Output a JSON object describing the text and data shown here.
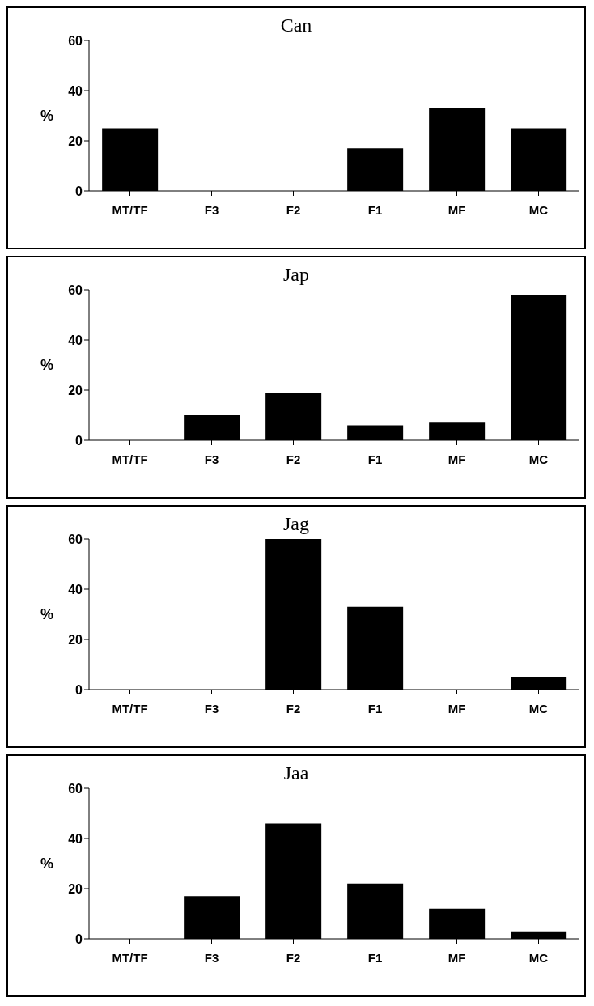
{
  "chart_data": [
    {
      "type": "bar",
      "title": "Can",
      "ylabel": "%",
      "categories": [
        "MT/TF",
        "F3",
        "F2",
        "F1",
        "MF",
        "MC"
      ],
      "values": [
        25,
        0,
        0,
        17,
        33,
        25
      ],
      "color": "#000000",
      "ylim": [
        0,
        60
      ],
      "yticks": [
        0,
        20,
        40,
        60
      ],
      "grid": false,
      "legend": false
    },
    {
      "type": "bar",
      "title": "Jap",
      "ylabel": "%",
      "categories": [
        "MT/TF",
        "F3",
        "F2",
        "F1",
        "MF",
        "MC"
      ],
      "values": [
        0,
        10,
        19,
        6,
        7,
        58
      ],
      "color": "#000000",
      "ylim": [
        0,
        60
      ],
      "yticks": [
        0,
        20,
        40,
        60
      ],
      "grid": false,
      "legend": false
    },
    {
      "type": "bar",
      "title": "Jag",
      "ylabel": "%",
      "categories": [
        "MT/TF",
        "F3",
        "F2",
        "F1",
        "MF",
        "MC"
      ],
      "values": [
        0,
        0,
        60,
        33,
        0,
        5
      ],
      "color": "#000000",
      "ylim": [
        0,
        60
      ],
      "yticks": [
        0,
        20,
        40,
        60
      ],
      "grid": false,
      "legend": false
    },
    {
      "type": "bar",
      "title": "Jaa",
      "ylabel": "%",
      "categories": [
        "MT/TF",
        "F3",
        "F2",
        "F1",
        "MF",
        "MC"
      ],
      "values": [
        0,
        17,
        46,
        22,
        12,
        3
      ],
      "color": "#000000",
      "ylim": [
        0,
        60
      ],
      "yticks": [
        0,
        20,
        40,
        60
      ],
      "grid": false,
      "legend": false
    }
  ]
}
